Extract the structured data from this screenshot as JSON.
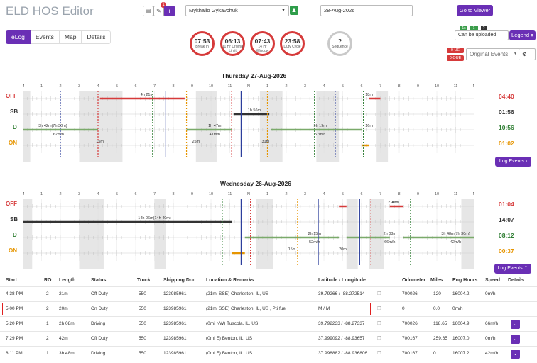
{
  "header": {
    "title": "ELD HOS Editor",
    "notification_count": "1",
    "driver": "Mykhailo Gykavchuk",
    "date": "28-Aug-2026",
    "go_to_viewer": "Go to Viewer",
    "badge_1": "1s",
    "badge_2": "1",
    "badge_3": "?",
    "can_be_uploaded": "Can be uploaded:",
    "legend": "Legend",
    "ue": "0 UE",
    "oue": "0 OUE",
    "original_events": "Original Events"
  },
  "tabs": [
    "eLog",
    "Events",
    "Map",
    "Details"
  ],
  "timers": [
    {
      "value": "07:53",
      "label": "Break In"
    },
    {
      "value": "06:13",
      "label": "11 Hr Driving Limit"
    },
    {
      "value": "07:43",
      "label": "14 Hr Window"
    },
    {
      "value": "23:58",
      "label": "Duty Cycle"
    },
    {
      "value": "?",
      "label": "Sequence"
    }
  ],
  "hour_labels": [
    "M",
    "1",
    "2",
    "3",
    "4",
    "5",
    "6",
    "7",
    "8",
    "9",
    "10",
    "11",
    "N",
    "1",
    "2",
    "3",
    "4",
    "5",
    "6",
    "7",
    "8",
    "9",
    "10",
    "11",
    "M"
  ],
  "status_labels": [
    "OFF",
    "SB",
    "D",
    "ON"
  ],
  "day1": {
    "title": "Thursday 27-Aug-2026",
    "totals": [
      "04:40",
      "01:56",
      "10:56",
      "01:02"
    ],
    "annotations": [
      "4h 21m",
      "1h 56m",
      "3h 42m(7h 30m)",
      "62m/h",
      "1h 47m",
      "41m/h",
      "5h 19m",
      "57m/h",
      "18m",
      "16m",
      "15m",
      "25m",
      "31m"
    ],
    "log_events": "Log Events"
  },
  "day2": {
    "title": "Wednesday 26-Aug-2026",
    "totals": [
      "01:04",
      "14:07",
      "08:12",
      "00:37"
    ],
    "annotations": [
      "14h 06m(14h 40m)",
      "21m",
      "42m",
      "2h 15m",
      "52m/h",
      "2h 08m",
      "66m/h",
      "3h 48m(7h 30m)",
      "42m/h",
      "15m",
      "20m"
    ],
    "log_events": "Log Events"
  },
  "table": {
    "headers": [
      "Start",
      "RO",
      "Length",
      "Status",
      "Truck",
      "Shipping Doc",
      "Location & Remarks",
      "Latitude / Longitude",
      "Odometer",
      "Miles",
      "Eng Hours",
      "Speed",
      "Details"
    ],
    "rows": [
      [
        "4:38 PM",
        "2",
        "21m",
        "Off Duty",
        "550",
        "123985961",
        "(21mi SSE) Charleston, IL, US",
        "39.79266 / -88.272514",
        "700026",
        "120",
        "16004.2",
        "0m/h"
      ],
      [
        "5:00 PM",
        "2",
        "20m",
        "On Duty",
        "550",
        "123985961",
        "(21mi SSE) Charleston, IL, US , Pti fuel",
        "M / M",
        "0",
        "0.0",
        "0m/h",
        ""
      ],
      [
        "5:20 PM",
        "1",
        "2h 08m",
        "Driving",
        "550",
        "123985961",
        "(0mi NW) Tuscola, IL, US",
        "39.792233 / -88.27337",
        "700026",
        "118.65",
        "16004.9",
        "66m/h"
      ],
      [
        "7:29 PM",
        "2",
        "42m",
        "Off Duty",
        "550",
        "123985961",
        "(0mi E) Benton, IL, US",
        "37.999092 / -88.93657",
        "700167",
        "259.65",
        "16007.0",
        "0m/h"
      ],
      [
        "8:11 PM",
        "1",
        "3h 48m",
        "Driving",
        "550",
        "123985961",
        "(0mi E) Benton, IL, US",
        "37.998882 / -88.936806",
        "700167",
        "0",
        "16007.2",
        "42m/h"
      ]
    ]
  },
  "colors": {
    "accent": "#6a2fb5",
    "off": "#d63a3a",
    "sb": "#333333",
    "driving": "#2e7d32",
    "on": "#e69500"
  }
}
